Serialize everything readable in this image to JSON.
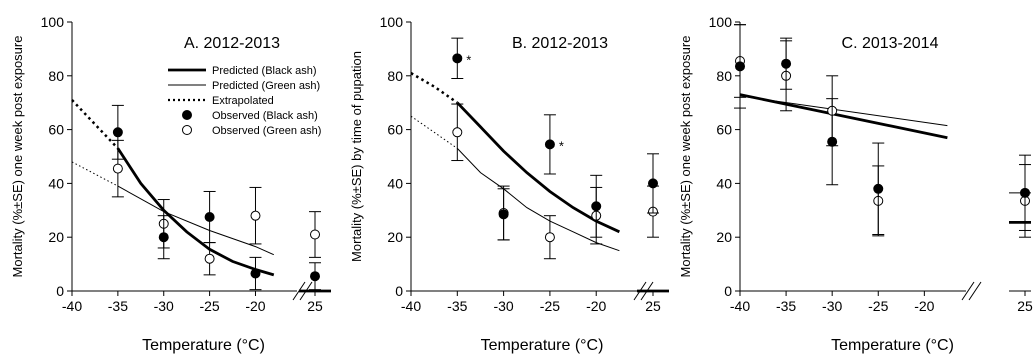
{
  "chart_data": [
    {
      "type": "line",
      "panel_title": "A. 2012-2013",
      "xlabel": "Temperature (°C)",
      "ylabel": "Mortality (%±SE) one week post exposure",
      "x_ticks": [
        "-40",
        "-35",
        "-30",
        "-25",
        "-20",
        "25"
      ],
      "y_ticks": [
        "0",
        "20",
        "40",
        "60",
        "80",
        "100"
      ],
      "xlim": [
        -40,
        -17
      ],
      "ylim": [
        0,
        100
      ],
      "legend": {
        "position": "top-right",
        "entries": [
          {
            "label": "Predicted (Black ash)",
            "style": "thick-line"
          },
          {
            "label": "Predicted (Green ash)",
            "style": "thin-line"
          },
          {
            "label": "Extrapolated",
            "style": "dotted-line"
          },
          {
            "label": "Observed (Black ash)",
            "style": "filled-circle"
          },
          {
            "label": "Observed (Green ash)",
            "style": "open-circle"
          }
        ]
      },
      "predicted_black": {
        "x": [
          -35,
          -32.5,
          -30,
          -27.5,
          -25,
          -22.5,
          -20,
          -18
        ],
        "y": [
          53,
          40,
          30,
          22,
          15.5,
          11,
          8,
          6
        ]
      },
      "predicted_green": {
        "x": [
          -35,
          -30,
          -25,
          -20,
          -18
        ],
        "y": [
          39,
          29.5,
          22.5,
          16.5,
          13.5
        ]
      },
      "extrapolated_black": {
        "x": [
          -40,
          -37.5,
          -35
        ],
        "y": [
          71,
          62,
          53
        ]
      },
      "extrapolated_green": {
        "x": [
          -40,
          -37.5,
          -35
        ],
        "y": [
          48,
          43.5,
          39
        ]
      },
      "observed_black": [
        {
          "x": -35,
          "y": 59,
          "se": 10
        },
        {
          "x": -30,
          "y": 20,
          "se": 8
        },
        {
          "x": -25,
          "y": 27.5,
          "se": 9.5
        },
        {
          "x": -20,
          "y": 6.5,
          "se": 6
        },
        {
          "x": "25",
          "y": 5.5,
          "se": 5
        }
      ],
      "observed_green": [
        {
          "x": -35,
          "y": 45.5,
          "se": 10.5
        },
        {
          "x": -30,
          "y": 25,
          "se": 9
        },
        {
          "x": -25,
          "y": 12,
          "se": 6
        },
        {
          "x": -20,
          "y": 28,
          "se": 10.5
        },
        {
          "x": "25",
          "y": 21,
          "se": 8.5
        }
      ],
      "control_black_line_y": 0,
      "annotations": []
    },
    {
      "type": "line",
      "panel_title": "B. 2012-2013",
      "xlabel": "Temperature (°C)",
      "ylabel": "Mortality (%±SE) by time of pupation",
      "x_ticks": [
        "-40",
        "-35",
        "-30",
        "-25",
        "-20",
        "25"
      ],
      "y_ticks": [
        "0",
        "20",
        "40",
        "60",
        "80",
        "100"
      ],
      "xlim": [
        -40,
        -17
      ],
      "ylim": [
        0,
        100
      ],
      "predicted_black": {
        "x": [
          -35,
          -32.5,
          -30,
          -27.5,
          -25,
          -22.5,
          -20,
          -17.5
        ],
        "y": [
          70,
          61,
          52,
          44,
          37,
          31,
          26,
          22
        ]
      },
      "predicted_green": {
        "x": [
          -35,
          -32.5,
          -30,
          -27.5,
          -25,
          -22.5,
          -20,
          -17.5
        ],
        "y": [
          53,
          44,
          38,
          31,
          26,
          22,
          18,
          15
        ]
      },
      "extrapolated_black": {
        "x": [
          -40,
          -37.5,
          -35
        ],
        "y": [
          81,
          76,
          70
        ]
      },
      "extrapolated_green": {
        "x": [
          -40,
          -37.5,
          -35
        ],
        "y": [
          65,
          59,
          53
        ]
      },
      "observed_black": [
        {
          "x": -35,
          "y": 86.5,
          "se": 7.5
        },
        {
          "x": -30,
          "y": 28.5,
          "se": 9.5
        },
        {
          "x": -25,
          "y": 54.5,
          "se": 11
        },
        {
          "x": -20,
          "y": 31.5,
          "se": 11.5
        },
        {
          "x": "25",
          "y": 40,
          "se": 11
        }
      ],
      "observed_green": [
        {
          "x": -35,
          "y": 59,
          "se": 10.5
        },
        {
          "x": -30,
          "y": 29,
          "se": 10
        },
        {
          "x": -25,
          "y": 20,
          "se": 8
        },
        {
          "x": -20,
          "y": 28,
          "se": 10.5
        },
        {
          "x": "25",
          "y": 29.5,
          "se": 9.5
        }
      ],
      "control_black_line_y": 0,
      "annotations": [
        {
          "text": "*",
          "x": -35,
          "y": 86.5
        },
        {
          "text": "*",
          "x": -25,
          "y": 54.5
        }
      ]
    },
    {
      "type": "line",
      "panel_title": "C. 2013-2014",
      "xlabel": "Temperature (°C)",
      "ylabel": "Mortality (%±SE) one week post exposure",
      "x_ticks": [
        "-40",
        "-35",
        "-30",
        "-25",
        "-20",
        "25"
      ],
      "y_ticks": [
        "0",
        "20",
        "40",
        "60",
        "80",
        "100"
      ],
      "xlim": [
        -40,
        -17
      ],
      "ylim": [
        0,
        100
      ],
      "predicted_black": {
        "x": [
          -40,
          -17.5
        ],
        "y": [
          73,
          57
        ]
      },
      "predicted_green": {
        "x": [
          -40,
          -17.5
        ],
        "y": [
          72.5,
          61.5
        ]
      },
      "observed_black": [
        {
          "x": -40,
          "y": 83.5,
          "se": 15.5
        },
        {
          "x": -35,
          "y": 84.5,
          "se": 9.5
        },
        {
          "x": -30,
          "y": 55.5,
          "se": 16
        },
        {
          "x": -25,
          "y": 38,
          "se": 17
        },
        {
          "x": "25",
          "y": 36.5,
          "se": 14
        }
      ],
      "observed_green": [
        {
          "x": -40,
          "y": 85.5,
          "se": 13.5
        },
        {
          "x": -35,
          "y": 80,
          "se": 13
        },
        {
          "x": -30,
          "y": 67,
          "se": 13
        },
        {
          "x": -25,
          "y": 33.5,
          "se": 13
        },
        {
          "x": "25",
          "y": 33.5,
          "se": 13.5
        }
      ],
      "control_black_line_y": 25.5,
      "control_green_line_y": 36.5,
      "annotations": []
    }
  ]
}
